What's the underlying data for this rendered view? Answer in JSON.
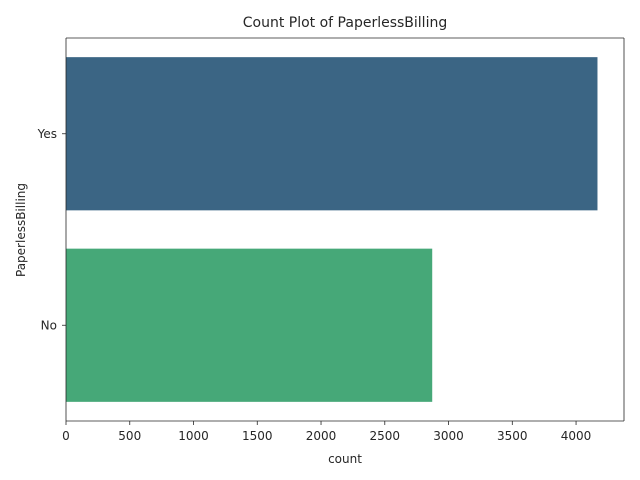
{
  "chart_data": {
    "type": "bar",
    "orientation": "horizontal",
    "title": "Count Plot of PaperlessBilling",
    "xlabel": "count",
    "ylabel": "PaperlessBilling",
    "categories": [
      "Yes",
      "No"
    ],
    "values": [
      4168,
      2872
    ],
    "colors": [
      "#3b6584",
      "#46a878"
    ],
    "xlim": [
      0,
      4376
    ],
    "xticks": [
      0,
      500,
      1000,
      1500,
      2000,
      2500,
      3000,
      3500,
      4000
    ],
    "grid": false
  }
}
